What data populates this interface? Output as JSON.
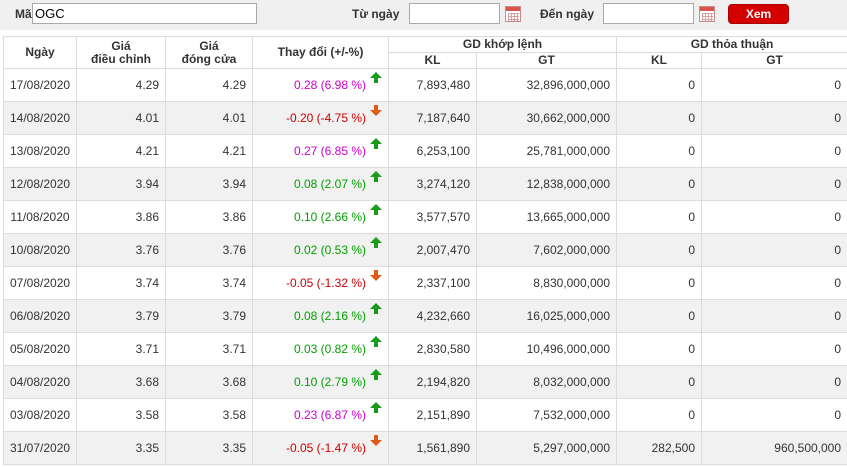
{
  "filter": {
    "code_label": "Mã",
    "code_value": "OGC",
    "from_label": "Từ ngày",
    "from_value": "",
    "to_label": "Đến ngày",
    "to_value": "",
    "view_button": "Xem"
  },
  "headers": {
    "date": "Ngày",
    "adj_price_l1": "Giá",
    "adj_price_l2": "điều chỉnh",
    "close_price_l1": "Giá",
    "close_price_l2": "đóng cửa",
    "change": "Thay đổi (+/-%)",
    "matched_group": "GD khớp lệnh",
    "matched_kl": "KL",
    "matched_gt": "GT",
    "agreed_group": "GD thỏa thuận",
    "agreed_kl": "KL",
    "agreed_gt": "GT"
  },
  "colors": {
    "ceiling": "#cc00cc",
    "down": "#cc0000",
    "up": "#00a000",
    "arrow_up": "#1a9a1a",
    "arrow_down": "#e05a1a",
    "button": "#d40000"
  },
  "rows": [
    {
      "date": "17/08/2020",
      "adj": "4.29",
      "close": "4.29",
      "change": "0.28 (6.98 %)",
      "dir": "up",
      "tone": "ceiling",
      "kl": "7,893,480",
      "gt": "32,896,000,000",
      "tt_kl": "0",
      "tt_gt": "0"
    },
    {
      "date": "14/08/2020",
      "adj": "4.01",
      "close": "4.01",
      "change": "-0.20 (-4.75 %)",
      "dir": "down",
      "tone": "down",
      "kl": "7,187,640",
      "gt": "30,662,000,000",
      "tt_kl": "0",
      "tt_gt": "0"
    },
    {
      "date": "13/08/2020",
      "adj": "4.21",
      "close": "4.21",
      "change": "0.27 (6.85 %)",
      "dir": "up",
      "tone": "ceiling",
      "kl": "6,253,100",
      "gt": "25,781,000,000",
      "tt_kl": "0",
      "tt_gt": "0"
    },
    {
      "date": "12/08/2020",
      "adj": "3.94",
      "close": "3.94",
      "change": "0.08 (2.07 %)",
      "dir": "up",
      "tone": "up",
      "kl": "3,274,120",
      "gt": "12,838,000,000",
      "tt_kl": "0",
      "tt_gt": "0"
    },
    {
      "date": "11/08/2020",
      "adj": "3.86",
      "close": "3.86",
      "change": "0.10 (2.66 %)",
      "dir": "up",
      "tone": "up",
      "kl": "3,577,570",
      "gt": "13,665,000,000",
      "tt_kl": "0",
      "tt_gt": "0"
    },
    {
      "date": "10/08/2020",
      "adj": "3.76",
      "close": "3.76",
      "change": "0.02 (0.53 %)",
      "dir": "up",
      "tone": "up",
      "kl": "2,007,470",
      "gt": "7,602,000,000",
      "tt_kl": "0",
      "tt_gt": "0"
    },
    {
      "date": "07/08/2020",
      "adj": "3.74",
      "close": "3.74",
      "change": "-0.05 (-1.32 %)",
      "dir": "down",
      "tone": "down",
      "kl": "2,337,100",
      "gt": "8,830,000,000",
      "tt_kl": "0",
      "tt_gt": "0"
    },
    {
      "date": "06/08/2020",
      "adj": "3.79",
      "close": "3.79",
      "change": "0.08 (2.16 %)",
      "dir": "up",
      "tone": "up",
      "kl": "4,232,660",
      "gt": "16,025,000,000",
      "tt_kl": "0",
      "tt_gt": "0"
    },
    {
      "date": "05/08/2020",
      "adj": "3.71",
      "close": "3.71",
      "change": "0.03 (0.82 %)",
      "dir": "up",
      "tone": "up",
      "kl": "2,830,580",
      "gt": "10,496,000,000",
      "tt_kl": "0",
      "tt_gt": "0"
    },
    {
      "date": "04/08/2020",
      "adj": "3.68",
      "close": "3.68",
      "change": "0.10 (2.79 %)",
      "dir": "up",
      "tone": "up",
      "kl": "2,194,820",
      "gt": "8,032,000,000",
      "tt_kl": "0",
      "tt_gt": "0"
    },
    {
      "date": "03/08/2020",
      "adj": "3.58",
      "close": "3.58",
      "change": "0.23 (6.87 %)",
      "dir": "up",
      "tone": "ceiling",
      "kl": "2,151,890",
      "gt": "7,532,000,000",
      "tt_kl": "0",
      "tt_gt": "0"
    },
    {
      "date": "31/07/2020",
      "adj": "3.35",
      "close": "3.35",
      "change": "-0.05 (-1.47 %)",
      "dir": "down",
      "tone": "down",
      "kl": "1,561,890",
      "gt": "5,297,000,000",
      "tt_kl": "282,500",
      "tt_gt": "960,500,000"
    }
  ]
}
